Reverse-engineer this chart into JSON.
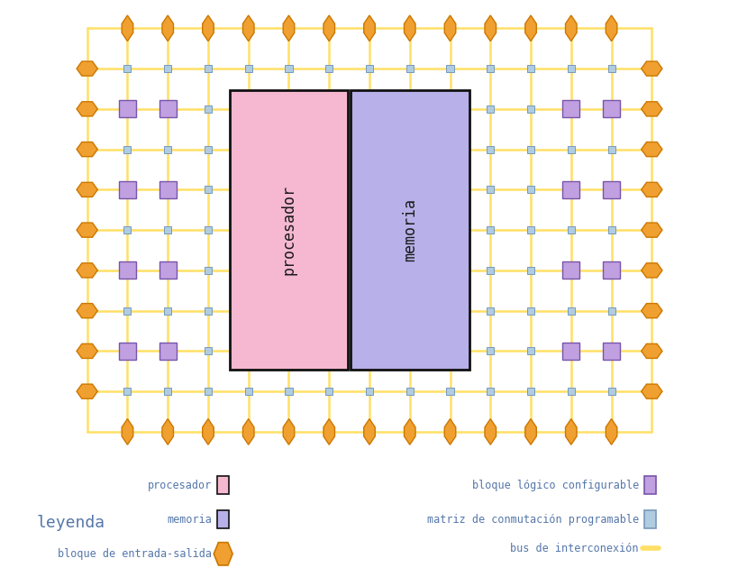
{
  "bg_color": "#ffffff",
  "legend_bg": "#d0d5e5",
  "grid_color": "#ffe066",
  "grid_lw": 1.8,
  "conn_box_color": "#b0cce0",
  "conn_box_edge": "#7799bb",
  "logic_block_color": "#c0a0e0",
  "logic_block_edge": "#7755aa",
  "io_block_color": "#f0a030",
  "io_block_edge": "#cc7700",
  "processor_color": "#f5b8d0",
  "processor_edge": "#111111",
  "memory_color": "#b8b0e8",
  "memory_edge": "#111111",
  "text_color": "#5577aa",
  "fig_width": 8.2,
  "fig_height": 6.5,
  "processor_label": "procesador",
  "memory_label": "memoria",
  "legend_title": "leyenda"
}
